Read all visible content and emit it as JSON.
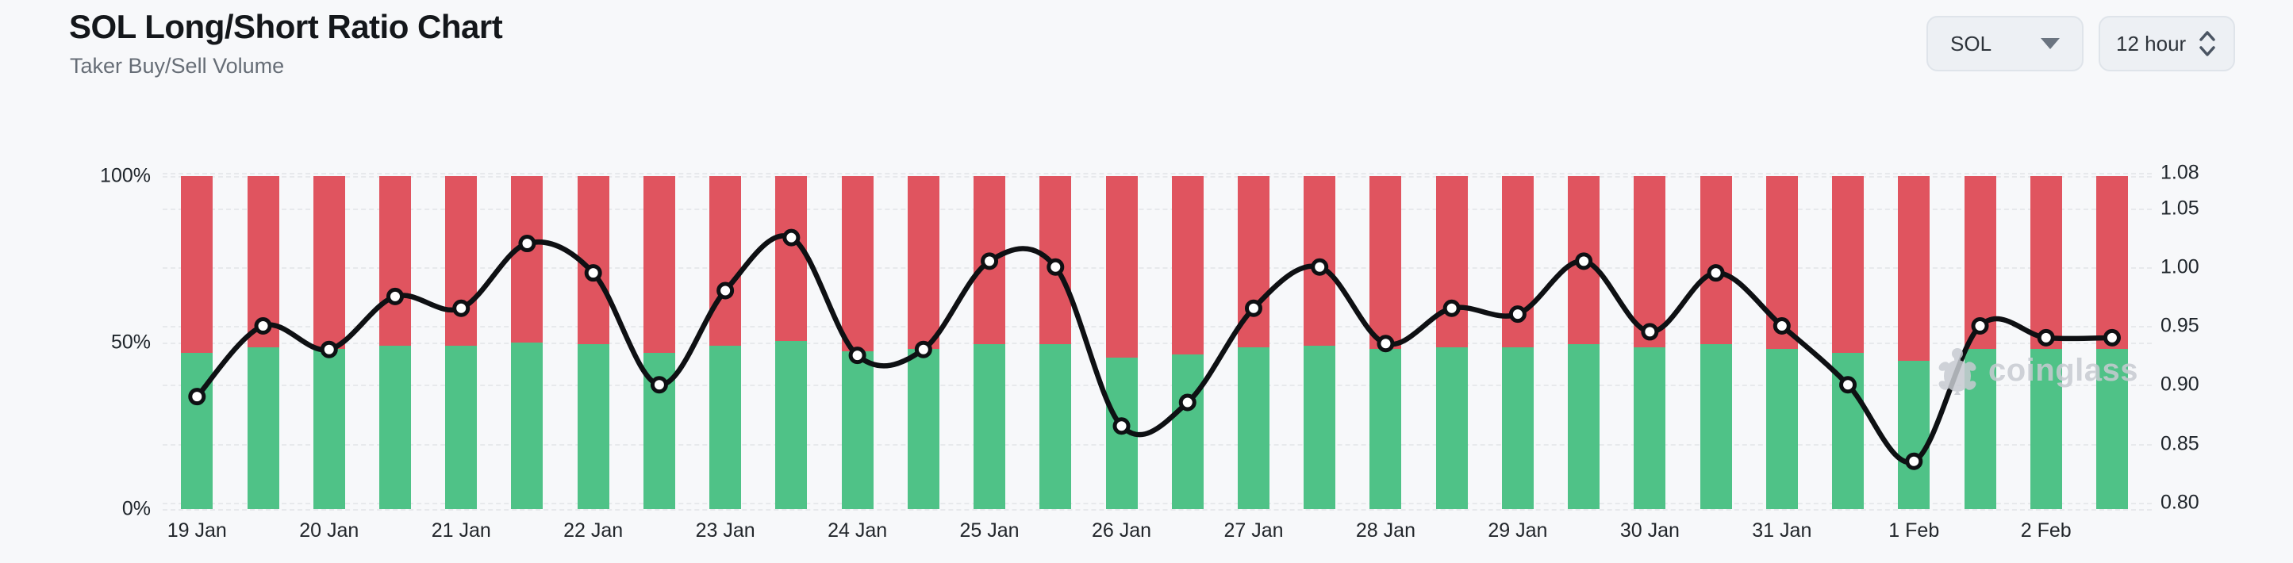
{
  "header": {
    "title": "SOL Long/Short Ratio Chart",
    "subtitle": "Taker Buy/Sell Volume"
  },
  "controls": {
    "symbol": "SOL",
    "interval": "12 hour"
  },
  "watermark": {
    "text": "coinglass"
  },
  "chart_data": {
    "type": "bar",
    "subtype": "stacked-percent-bars-with-ratio-line",
    "x_tick_labels": [
      "19 Jan",
      "20 Jan",
      "21 Jan",
      "22 Jan",
      "23 Jan",
      "24 Jan",
      "25 Jan",
      "26 Jan",
      "27 Jan",
      "28 Jan",
      "29 Jan",
      "30 Jan",
      "31 Jan",
      "1 Feb",
      "2 Feb"
    ],
    "bars_per_day": 2,
    "series": [
      {
        "name": "Taker Buy %",
        "type": "bar-bottom",
        "color": "#4fc287",
        "values": [
          47,
          48.5,
          48,
          49,
          49,
          50,
          49.5,
          47,
          49,
          50.5,
          47.5,
          48,
          49.5,
          49.5,
          45.5,
          46.5,
          48.5,
          49,
          48,
          48.5,
          48.5,
          49.5,
          48.5,
          49.5,
          48,
          47,
          44.5,
          48,
          48,
          48
        ]
      },
      {
        "name": "Taker Sell %",
        "type": "bar-top",
        "color": "#e0545f",
        "values": [
          53,
          51.5,
          52,
          51,
          51,
          50,
          50.5,
          53,
          51,
          49.5,
          52.5,
          52,
          50.5,
          50.5,
          54.5,
          53.5,
          51.5,
          51,
          52,
          51.5,
          51.5,
          50.5,
          51.5,
          50.5,
          52,
          53,
          55.5,
          52,
          52,
          52
        ]
      },
      {
        "name": "Long/Short Ratio",
        "type": "line",
        "color": "#0e1013",
        "values": [
          0.89,
          0.95,
          0.93,
          0.975,
          0.965,
          1.02,
          0.995,
          0.9,
          0.98,
          1.025,
          0.925,
          0.93,
          1.005,
          1.0,
          0.865,
          0.885,
          0.965,
          1.0,
          0.935,
          0.965,
          0.96,
          1.005,
          0.945,
          0.995,
          0.95,
          0.9,
          0.835,
          0.95,
          0.94,
          0.94
        ]
      }
    ],
    "left_axis": {
      "ticks": [
        "100%",
        "50%",
        "0%"
      ],
      "min": 0,
      "max": 100
    },
    "right_axis": {
      "ticks": [
        "1.08",
        "1.05",
        "1.00",
        "0.95",
        "0.90",
        "0.85",
        "0.80"
      ],
      "min": 0.79,
      "max": 1.083
    },
    "grid": "horizontal-dashed",
    "legend": "none",
    "marker": {
      "fill": "#ffffff",
      "stroke": "#0e1013"
    }
  }
}
